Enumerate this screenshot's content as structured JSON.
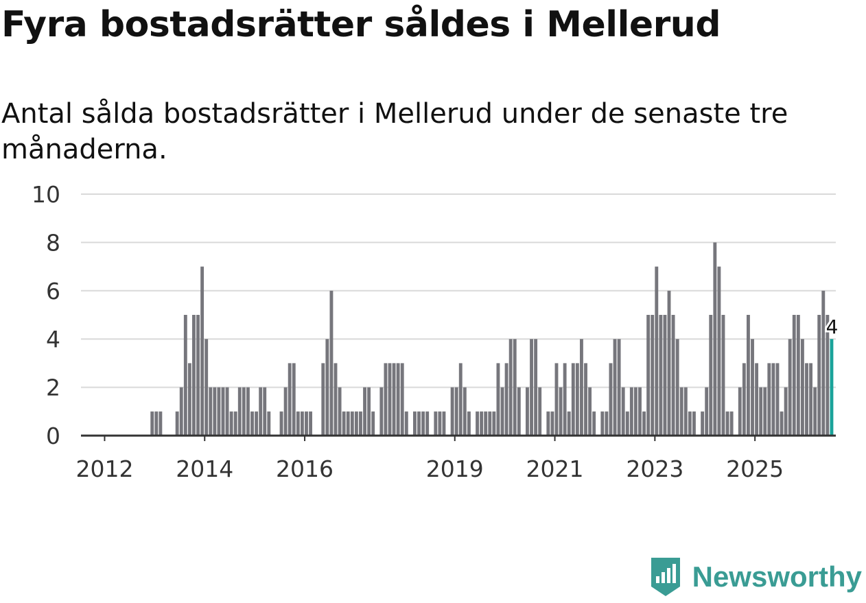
{
  "header": {
    "title": "Fyra bostadsrätter såldes i Mellerud",
    "subtitle": "Antal sålda bostadsrätter i Mellerud under de senaste tre månaderna."
  },
  "brand": {
    "name": "Newsworthy",
    "color": "#3a9c94"
  },
  "colors": {
    "bar": "#76767c",
    "highlight": "#1aa39a",
    "grid": "#d9d9d9",
    "axis": "#333333"
  },
  "chart_data": {
    "type": "bar",
    "title": "Fyra bostadsrätter såldes i Mellerud",
    "subtitle": "Antal sålda bostadsrätter i Mellerud under de senaste tre månaderna.",
    "xlabel": "",
    "ylabel": "",
    "ylim": [
      0,
      10
    ],
    "yticks": [
      0,
      2,
      4,
      6,
      8,
      10
    ],
    "grid": true,
    "x_start": "2011-07",
    "frequency": "monthly",
    "xticks": [
      {
        "label": "2012",
        "year": 2012
      },
      {
        "label": "2014",
        "year": 2014
      },
      {
        "label": "2016",
        "year": 2016
      },
      {
        "label": "2019",
        "year": 2019
      },
      {
        "label": "2021",
        "year": 2021
      },
      {
        "label": "2023",
        "year": 2023
      },
      {
        "label": "2025",
        "year": 2025
      }
    ],
    "values": [
      0,
      0,
      0,
      0,
      0,
      0,
      0,
      0,
      0,
      0,
      0,
      0,
      0,
      0,
      0,
      0,
      0,
      1,
      1,
      1,
      0,
      0,
      0,
      1,
      2,
      5,
      3,
      5,
      5,
      7,
      4,
      2,
      2,
      2,
      2,
      2,
      1,
      1,
      2,
      2,
      2,
      1,
      1,
      2,
      2,
      1,
      0,
      0,
      1,
      2,
      3,
      3,
      1,
      1,
      1,
      1,
      0,
      0,
      3,
      4,
      6,
      3,
      2,
      1,
      1,
      1,
      1,
      1,
      2,
      2,
      1,
      0,
      2,
      3,
      3,
      3,
      3,
      3,
      1,
      0,
      1,
      1,
      1,
      1,
      0,
      1,
      1,
      1,
      0,
      2,
      2,
      3,
      2,
      1,
      0,
      1,
      1,
      1,
      1,
      1,
      3,
      2,
      3,
      4,
      4,
      2,
      0,
      2,
      4,
      4,
      2,
      0,
      1,
      1,
      3,
      2,
      3,
      1,
      3,
      3,
      4,
      3,
      2,
      1,
      0,
      1,
      1,
      3,
      4,
      4,
      2,
      1,
      2,
      2,
      2,
      1,
      5,
      5,
      7,
      5,
      5,
      6,
      5,
      4,
      2,
      2,
      1,
      1,
      0,
      1,
      2,
      5,
      8,
      7,
      5,
      1,
      1,
      0,
      2,
      3,
      5,
      4,
      3,
      2,
      2,
      3,
      3,
      3,
      1,
      2,
      4,
      5,
      5,
      4,
      3,
      3,
      2,
      5,
      6,
      5,
      4
    ],
    "highlight_last": true,
    "annotations": [
      {
        "label": "4",
        "value": 4,
        "target": "last"
      }
    ]
  }
}
